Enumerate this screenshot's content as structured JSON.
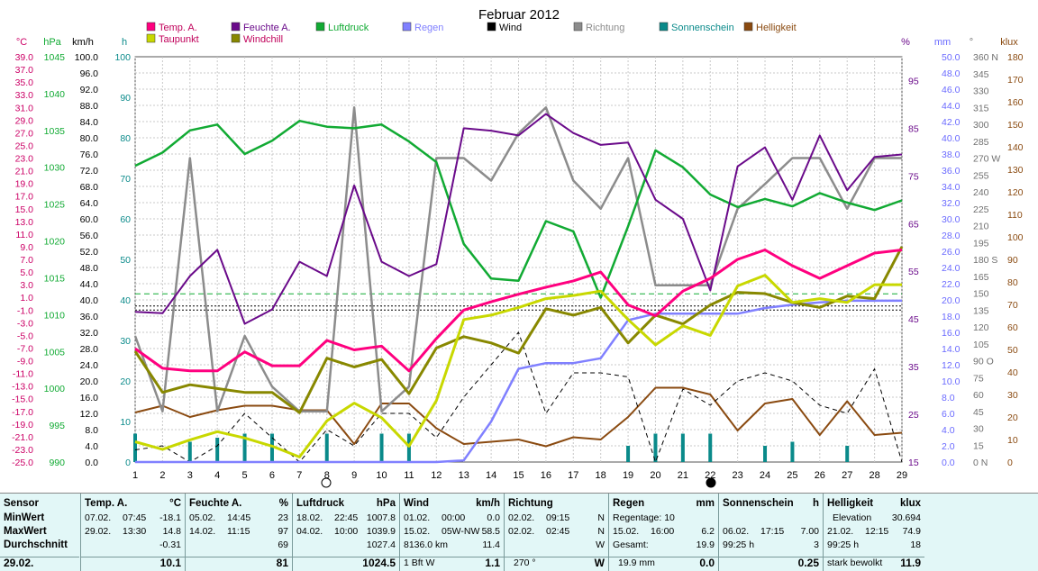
{
  "chart_data": {
    "type": "line",
    "title": "Februar 2012",
    "x": [
      1,
      2,
      3,
      4,
      5,
      6,
      7,
      8,
      9,
      10,
      11,
      12,
      13,
      14,
      15,
      16,
      17,
      18,
      19,
      20,
      21,
      22,
      23,
      24,
      25,
      26,
      27,
      28,
      29
    ],
    "x_tick_labels": [
      "1",
      "2",
      "3",
      "4",
      "5",
      "6",
      "7",
      "8",
      "9",
      "10",
      "11",
      "12",
      "13",
      "14",
      "15",
      "16",
      "17",
      "18",
      "19",
      "20",
      "21",
      "22",
      "23",
      "24",
      "25",
      "26",
      "27",
      "28",
      "29"
    ],
    "grid": true,
    "legend": [
      {
        "name": "Temp. A.",
        "color": "#ff007f"
      },
      {
        "name": "Feuchte A.",
        "color": "#6a0a8a"
      },
      {
        "name": "Luftdruck",
        "color": "#11aa33"
      },
      {
        "name": "Regen",
        "color": "#8080ff"
      },
      {
        "name": "Wind",
        "color": "#000000"
      },
      {
        "name": "Richtung",
        "color": "#8c8c8c"
      },
      {
        "name": "Sonnenschein",
        "color": "#0a8a8a"
      },
      {
        "name": "Helligkeit",
        "color": "#8a4a10"
      },
      {
        "name": "Taupunkt",
        "color": "#c8d800"
      },
      {
        "name": "Windchill",
        "color": "#888800"
      }
    ],
    "axes": {
      "temp": {
        "label": "°C",
        "color": "#cc0066",
        "range": [
          -25,
          39
        ],
        "ticks": [
          "39.0",
          "37.0",
          "35.0",
          "33.0",
          "31.0",
          "29.0",
          "27.0",
          "25.0",
          "23.0",
          "21.0",
          "19.0",
          "17.0",
          "15.0",
          "13.0",
          "11.0",
          "9.0",
          "7.0",
          "5.0",
          "3.0",
          "1.0",
          "-1.0",
          "-3.0",
          "-5.0",
          "-7.0",
          "-9.0",
          "-11.0",
          "-13.0",
          "-15.0",
          "-17.0",
          "-19.0",
          "-21.0",
          "-23.0",
          "-25.0"
        ]
      },
      "pressure": {
        "label": "hPa",
        "color": "#11aa33",
        "range": [
          990,
          1045
        ],
        "ticks": [
          "1045",
          "1040",
          "1035",
          "1030",
          "1025",
          "1020",
          "1015",
          "1010",
          "1005",
          "1000",
          "995",
          "990"
        ]
      },
      "wind": {
        "label": "km/h",
        "color": "#000000",
        "range": [
          0,
          100
        ],
        "ticks": [
          "100.0",
          "96.0",
          "92.0",
          "88.0",
          "84.0",
          "80.0",
          "76.0",
          "72.0",
          "68.0",
          "64.0",
          "60.0",
          "56.0",
          "52.0",
          "48.0",
          "44.0",
          "40.0",
          "36.0",
          "32.0",
          "28.0",
          "24.0",
          "20.0",
          "16.0",
          "12.0",
          "8.0",
          "4.0",
          "0.0"
        ]
      },
      "sunshine": {
        "label": "h",
        "color": "#0a8a8a",
        "range": [
          0,
          100
        ],
        "ticks": [
          "100",
          "90",
          "80",
          "70",
          "60",
          "50",
          "40",
          "30",
          "20",
          "10",
          "0"
        ]
      },
      "humidity": {
        "label": "%",
        "color": "#6a0a8a",
        "range": [
          15,
          100
        ],
        "ticks": [
          "95",
          "85",
          "75",
          "65",
          "55",
          "45",
          "35",
          "25",
          "15"
        ]
      },
      "rain": {
        "label": "mm",
        "color": "#6a6aff",
        "range": [
          0,
          50
        ],
        "ticks": [
          "50.0",
          "48.0",
          "46.0",
          "44.0",
          "42.0",
          "40.0",
          "38.0",
          "36.0",
          "34.0",
          "32.0",
          "30.0",
          "28.0",
          "26.0",
          "24.0",
          "22.0",
          "20.0",
          "18.0",
          "16.0",
          "14.0",
          "12.0",
          "10.0",
          "8.0",
          "6.0",
          "4.0",
          "2.0",
          "0.0"
        ]
      },
      "direction": {
        "label": "°",
        "color": "#707070",
        "range": [
          0,
          360
        ],
        "ticks": [
          "360 N",
          "345",
          "330",
          "315",
          "300",
          "285",
          "270 W",
          "255",
          "240",
          "225",
          "210",
          "195",
          "180 S",
          "165",
          "150",
          "135",
          "120",
          "105",
          "90 O",
          "75",
          "60",
          "45",
          "30",
          "15",
          "0 N"
        ]
      },
      "brightness": {
        "label": "klux",
        "color": "#8a4a10",
        "range": [
          0,
          180
        ],
        "ticks": [
          "180",
          "170",
          "160",
          "150",
          "140",
          "130",
          "120",
          "110",
          "100",
          "90",
          "80",
          "70",
          "60",
          "50",
          "40",
          "30",
          "20",
          "10",
          "0"
        ]
      }
    },
    "series": [
      {
        "name": "Temp. A.",
        "axis": "temp",
        "color": "#ff007f",
        "width": 3,
        "values": [
          -7.1,
          -10.2,
          -10.6,
          -10.6,
          -7.6,
          -9.8,
          -9.8,
          -5.8,
          -7.3,
          -6.7,
          -10.6,
          -5.5,
          -1.0,
          0.3,
          1.5,
          2.6,
          3.6,
          5.0,
          -0.2,
          -1.9,
          2.0,
          4.0,
          7.0,
          8.5,
          6.0,
          4.0,
          6.0,
          8.0,
          8.5
        ]
      },
      {
        "name": "Taupunkt",
        "axis": "temp",
        "color": "#c8d800",
        "width": 3,
        "values": [
          -21.8,
          -23.0,
          -21.5,
          -20.2,
          -21.2,
          -22.5,
          -24.2,
          -18.5,
          -15.7,
          -18.0,
          -22.5,
          -15.3,
          -2.5,
          -1.8,
          -0.6,
          0.8,
          1.3,
          2.0,
          -2.5,
          -6.5,
          -3.5,
          -5.0,
          2.8,
          4.5,
          0.2,
          0.8,
          0.2,
          3.0,
          3.0
        ]
      },
      {
        "name": "Windchill",
        "axis": "temp",
        "color": "#888800",
        "width": 3,
        "values": [
          -7.5,
          -14.0,
          -12.8,
          -13.4,
          -14.0,
          -14.0,
          -17.2,
          -8.6,
          -10.0,
          -8.8,
          -14.2,
          -7.0,
          -5.2,
          -6.2,
          -7.8,
          -0.8,
          -1.8,
          -0.6,
          -6.2,
          -1.8,
          -3.2,
          -0.2,
          1.8,
          1.6,
          0.2,
          -0.6,
          1.2,
          0.8,
          9.0
        ]
      },
      {
        "name": "Feuchte A.",
        "axis": "humidity",
        "color": "#6a0a8a",
        "width": 2,
        "values": [
          46.5,
          46.2,
          54.0,
          59.5,
          44.0,
          47.0,
          57.0,
          54.0,
          73.0,
          57.0,
          54.0,
          56.5,
          85.0,
          84.5,
          83.5,
          88.0,
          84.0,
          81.5,
          82.0,
          70.0,
          66.0,
          51.0,
          77.0,
          81.0,
          70.0,
          83.5,
          72.0,
          79.0,
          79.5
        ]
      },
      {
        "name": "Luftdruck",
        "axis": "pressure",
        "color": "#11aa33",
        "width": 2.5,
        "values": [
          1030.2,
          1032.0,
          1035.0,
          1035.8,
          1031.8,
          1033.6,
          1036.3,
          1035.5,
          1035.3,
          1035.8,
          1033.5,
          1030.7,
          1019.6,
          1014.9,
          1014.6,
          1022.7,
          1021.3,
          1012.3,
          1022.0,
          1032.3,
          1030.0,
          1026.3,
          1024.6,
          1025.7,
          1024.7,
          1026.5,
          1025.2,
          1024.2,
          1025.5
        ]
      },
      {
        "name": "Regen",
        "axis": "rain",
        "color": "#8080ff",
        "width": 2.5,
        "values": [
          0,
          0,
          0,
          0,
          0,
          0,
          0,
          0,
          0,
          0,
          0,
          0,
          0.2,
          5.0,
          11.5,
          12.2,
          12.2,
          12.8,
          17.5,
          18.3,
          18.3,
          18.3,
          18.3,
          19.0,
          19.4,
          19.7,
          19.9,
          19.9,
          19.9
        ]
      },
      {
        "name": "Wind",
        "axis": "wind",
        "color": "#000000",
        "width": 1,
        "dash": "5,4",
        "values": [
          3.0,
          4.0,
          0.0,
          4.0,
          12.0,
          6.0,
          0.0,
          8.0,
          4.0,
          12.0,
          12.0,
          6.0,
          16.0,
          24.0,
          32.0,
          12.0,
          22.0,
          22.0,
          21.0,
          0.0,
          18.0,
          14.0,
          20.0,
          22.0,
          20.0,
          14.0,
          12.0,
          23.0,
          0.0
        ]
      },
      {
        "name": "Richtung",
        "axis": "direction",
        "color": "#8c8c8c",
        "width": 2.5,
        "values": [
          112,
          45,
          270,
          45,
          112,
          67,
          45,
          45,
          315,
          45,
          67,
          270,
          270,
          250,
          292,
          315,
          250,
          225,
          270,
          157,
          157,
          157,
          225,
          247,
          270,
          270,
          225,
          270,
          270
        ]
      },
      {
        "name": "Sonnenschein",
        "axis": "sunshine",
        "color": "#0a8a8a",
        "type": "bar",
        "values": [
          7,
          0,
          5,
          6,
          7,
          7,
          0,
          7,
          0,
          7,
          7,
          0,
          0,
          0,
          0,
          0,
          0,
          0,
          4,
          7,
          7,
          7,
          0,
          4,
          5,
          0,
          4,
          0,
          0
        ]
      },
      {
        "name": "Helligkeit",
        "axis": "brightness",
        "color": "#8a4a10",
        "width": 2,
        "values": [
          22,
          25,
          20,
          23,
          25,
          25,
          23,
          23,
          8,
          26,
          26,
          15,
          8,
          9,
          10,
          7,
          11,
          10,
          20,
          33,
          33,
          30,
          14,
          26,
          28,
          12,
          27,
          12,
          13
        ]
      }
    ],
    "reference_lines": [
      {
        "axis": "wind",
        "value": 41.5,
        "color": "#11aa33",
        "dash": "6,4"
      },
      {
        "axis": "wind",
        "value": 38.5,
        "color": "#000000",
        "dash": "2,2"
      },
      {
        "axis": "wind",
        "value": 37.5,
        "color": "#000000",
        "dash": "2,2"
      }
    ]
  },
  "summary": {
    "sensor": {
      "title": "Sensor",
      "rows": [
        "MinWert",
        "MaxWert",
        "Durchschnitt"
      ],
      "date": "29.02."
    },
    "temp": {
      "title": "Temp. A.",
      "unit": "°C",
      "min": {
        "date": "07.02.",
        "time": "07:45",
        "value": "-18.1"
      },
      "max": {
        "date": "29.02.",
        "time": "13:30",
        "value": "14.8"
      },
      "avg": "-0.31",
      "current": "10.1"
    },
    "humidity": {
      "title": "Feuchte A.",
      "unit": "%",
      "min": {
        "date": "05.02.",
        "time": "14:45",
        "value": "23"
      },
      "max": {
        "date": "14.02.",
        "time": "11:15",
        "value": "97"
      },
      "avg": "69",
      "current": "81"
    },
    "pressure": {
      "title": "Luftdruck",
      "unit": "hPa",
      "min": {
        "date": "18.02.",
        "time": "22:45",
        "value": "1007.8"
      },
      "max": {
        "date": "04.02.",
        "time": "10:00",
        "value": "1039.9"
      },
      "avg": "1027.4",
      "current": "1024.5"
    },
    "wind": {
      "title": "Wind",
      "unit": "km/h",
      "min": {
        "date": "01.02.",
        "time": "00:00",
        "value": "0.0"
      },
      "max": {
        "date": "15.02.",
        "time": "05W-NW",
        "value": "58.5"
      },
      "avg_label": "8136.0 km",
      "avg": "11.4",
      "current_label": "1 Bft W",
      "current": "1.1"
    },
    "direction": {
      "title": "Richtung",
      "min": {
        "date": "02.02.",
        "time": "09:15",
        "value": "N"
      },
      "max": {
        "date": "02.02.",
        "time": "02:45",
        "value": "N"
      },
      "avg": "W",
      "current_label": "270 °",
      "current": "W"
    },
    "rain": {
      "title": "Regen",
      "unit": "mm",
      "row1": "Regentage: 10",
      "max": {
        "date": "15.02.",
        "time": "16:00",
        "value": "6.2"
      },
      "total_label": "Gesamt:",
      "total": "19.9",
      "current_label": "19.9 mm",
      "current": "0.0"
    },
    "sunshine": {
      "title": "Sonnenschein",
      "unit": "h",
      "max": {
        "date": "06.02.",
        "time": "17:15",
        "value": "7.00"
      },
      "total_label": "99:25 h",
      "total": "3",
      "current": "0.25"
    },
    "brightness": {
      "title": "Helligkeit",
      "unit": "klux",
      "row1_label": "Elevation",
      "row1_value": "30.694",
      "max": {
        "date": "21.02.",
        "time": "12:15",
        "value": "74.9"
      },
      "total_label": "99:25 h",
      "total": "18",
      "current_label": "stark bewolkt",
      "current": "11.9"
    }
  }
}
